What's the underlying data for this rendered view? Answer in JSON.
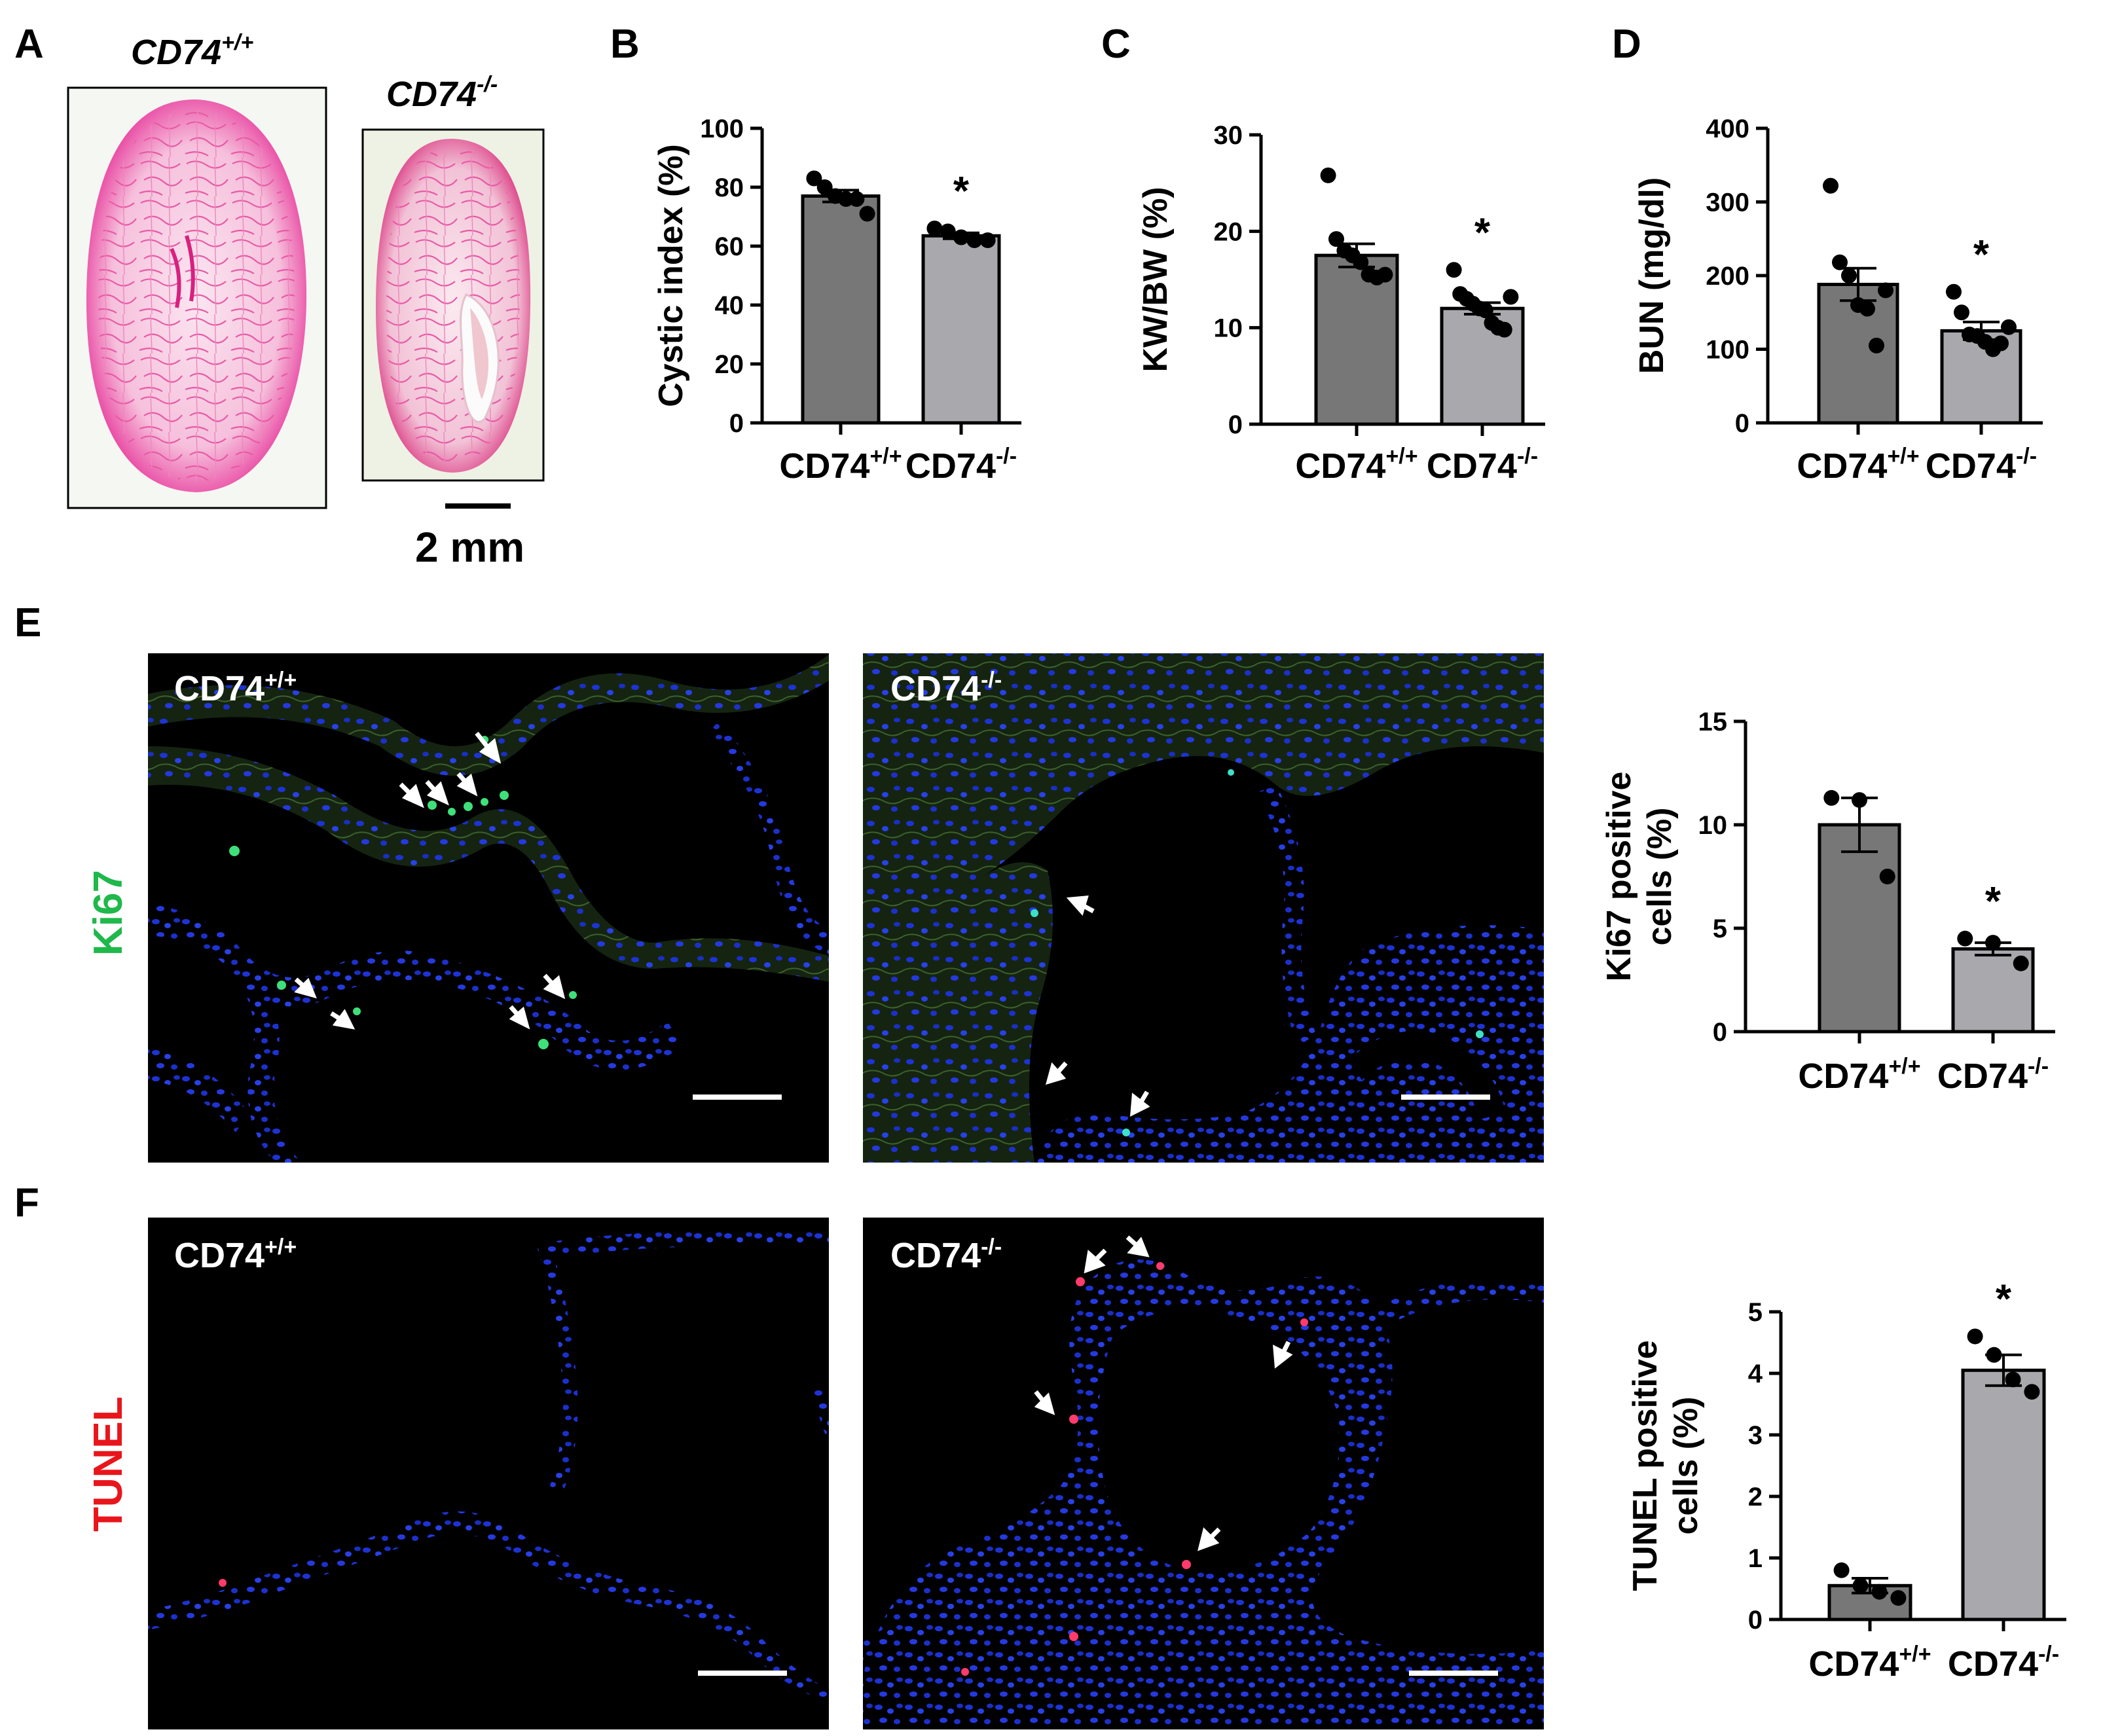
{
  "panels": {
    "A": {
      "letter": "A",
      "wt_label": {
        "base": "CD74",
        "sup": "+/+"
      },
      "ko_label": {
        "base": "CD74",
        "sup": "-/-"
      },
      "scale_bar_label": "2 mm"
    },
    "E": {
      "letter": "E",
      "stain": "Ki67",
      "stain_color": "#1fb84a",
      "img_wt": {
        "base": "CD74",
        "sup": "+/+"
      },
      "img_ko": {
        "base": "CD74",
        "sup": "-/-"
      }
    },
    "F": {
      "letter": "F",
      "stain": "TUNEL",
      "stain_color": "#e8151b",
      "img_wt": {
        "base": "CD74",
        "sup": "+/+"
      },
      "img_ko": {
        "base": "CD74",
        "sup": "-/-"
      }
    }
  },
  "colors": {
    "bar_wt": "#777777",
    "bar_ko": "#a9a9ad",
    "dot": "#000000"
  },
  "chart_data": [
    {
      "id": "B",
      "letter": "B",
      "type": "bar",
      "ylabel": "Cystic index (%)",
      "ylim": [
        0,
        100
      ],
      "yticks": [
        0,
        20,
        40,
        60,
        80,
        100
      ],
      "categories": [
        {
          "base": "CD74",
          "sup": "+/+"
        },
        {
          "base": "CD74",
          "sup": "-/-"
        }
      ],
      "values": [
        77,
        63.5
      ],
      "sem": [
        2,
        1
      ],
      "points": [
        [
          83,
          80,
          77,
          76,
          76,
          71
        ],
        [
          66,
          65,
          63,
          62,
          62
        ]
      ],
      "annotations": [
        "",
        "*"
      ]
    },
    {
      "id": "C",
      "letter": "C",
      "type": "bar",
      "ylabel": "KW/BW (%)",
      "ylim": [
        0,
        30
      ],
      "yticks": [
        0,
        10,
        20,
        30
      ],
      "categories": [
        {
          "base": "CD74",
          "sup": "+/+"
        },
        {
          "base": "CD74",
          "sup": "-/-"
        }
      ],
      "values": [
        17.5,
        12
      ],
      "sem": [
        1.2,
        0.6
      ],
      "points": [
        [
          25.8,
          19.2,
          18,
          17.5,
          16.8,
          15.5,
          15.2,
          15.5
        ],
        [
          16,
          13.5,
          13,
          12.5,
          12,
          11.8,
          10.5,
          10,
          9.8,
          13.2
        ]
      ],
      "annotations": [
        "",
        "*"
      ]
    },
    {
      "id": "D",
      "letter": "D",
      "type": "bar",
      "ylabel": "BUN (mg/dl)",
      "ylim": [
        0,
        400
      ],
      "yticks": [
        0,
        100,
        200,
        300,
        400
      ],
      "categories": [
        {
          "base": "CD74",
          "sup": "+/+"
        },
        {
          "base": "CD74",
          "sup": "-/-"
        }
      ],
      "values": [
        188,
        125
      ],
      "sem": [
        22,
        12
      ],
      "points": [
        [
          322,
          218,
          200,
          160,
          155,
          105,
          180
        ],
        [
          178,
          150,
          120,
          118,
          110,
          100,
          108,
          130
        ]
      ],
      "annotations": [
        "",
        "*"
      ]
    },
    {
      "id": "E",
      "type": "bar",
      "ylabel": [
        "Ki67 positive",
        "cells (%)"
      ],
      "ylim": [
        0,
        15
      ],
      "yticks": [
        0,
        5,
        10,
        15
      ],
      "categories": [
        {
          "base": "CD74",
          "sup": "+/+"
        },
        {
          "base": "CD74",
          "sup": "-/-"
        }
      ],
      "values": [
        10,
        4
      ],
      "sem": [
        1.3,
        0.3
      ],
      "points": [
        [
          11.3,
          11.2,
          7.5
        ],
        [
          4.5,
          4.3,
          3.3
        ]
      ],
      "annotations": [
        "",
        "*"
      ]
    },
    {
      "id": "F",
      "type": "bar",
      "ylabel": [
        "TUNEL positive",
        "cells (%)"
      ],
      "ylim": [
        0,
        5
      ],
      "yticks": [
        0,
        1,
        2,
        3,
        4,
        5
      ],
      "categories": [
        {
          "base": "CD74",
          "sup": "+/+"
        },
        {
          "base": "CD74",
          "sup": "-/-"
        }
      ],
      "values": [
        0.55,
        4.05
      ],
      "sem": [
        0.12,
        0.25
      ],
      "points": [
        [
          0.8,
          0.55,
          0.45,
          0.35
        ],
        [
          4.6,
          4.3,
          3.9,
          3.7
        ]
      ],
      "annotations": [
        "",
        "*"
      ]
    }
  ]
}
